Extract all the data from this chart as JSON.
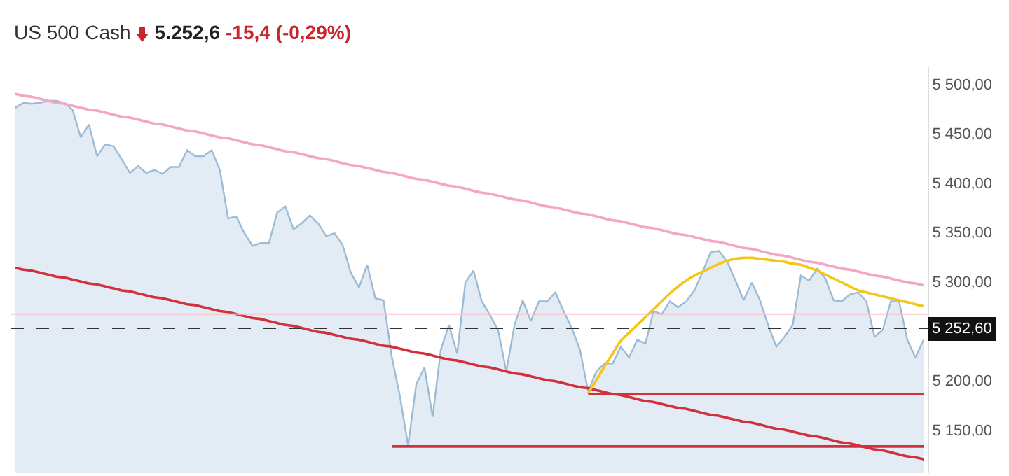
{
  "chart_data": {
    "type": "area",
    "title": "US 500 Cash",
    "annotations": [
      "5.252,6",
      "-15,4 (-0,29%)"
    ],
    "categories": [
      null,
      null,
      null,
      null,
      null,
      null,
      null,
      null,
      null,
      null,
      null,
      null,
      null,
      null,
      null,
      null,
      null,
      null,
      null,
      null,
      null,
      null,
      null,
      null,
      null,
      null,
      null,
      null,
      null,
      null,
      null,
      null,
      null,
      null,
      null,
      null,
      null,
      null,
      null,
      null,
      null,
      null,
      null,
      null,
      null,
      null,
      null,
      null,
      null,
      null,
      null,
      null,
      null,
      null,
      null,
      null,
      null,
      null,
      null,
      null,
      null,
      null,
      null,
      null,
      null,
      null,
      null,
      null,
      null,
      null,
      null,
      null,
      null,
      null,
      null,
      null,
      null,
      null,
      null,
      null,
      null,
      null,
      null,
      null,
      null,
      null,
      null,
      null,
      null,
      null,
      null,
      null,
      null,
      null,
      null,
      null,
      null,
      null,
      null,
      null,
      null,
      null,
      null,
      null,
      null,
      null,
      null,
      null,
      null,
      null,
      null,
      null
    ],
    "series": [
      {
        "color": "#9bbbd6",
        "values": [
          5476,
          5481,
          5480,
          5481,
          5483,
          5483,
          5481,
          5474,
          5446,
          5459,
          5427,
          5439,
          5437,
          5424,
          5410,
          5417,
          5410,
          5413,
          5409,
          5416,
          5416,
          5433,
          5427,
          5427,
          5433,
          5413,
          5364,
          5366,
          5349,
          5336,
          5339,
          5339,
          5370,
          5376,
          5353,
          5359,
          5367,
          5359,
          5346,
          5349,
          5337,
          5309,
          5294,
          5317,
          5283,
          5281,
          5224,
          5184,
          5134,
          5196,
          5213,
          5163,
          5231,
          5256,
          5227,
          5299,
          5311,
          5280,
          5266,
          5251,
          5209,
          5256,
          5281,
          5260,
          5280,
          5280,
          5289,
          5270,
          5253,
          5231,
          5189,
          5209,
          5217,
          5217,
          5234,
          5223,
          5241,
          5237,
          5270,
          5267,
          5280,
          5274,
          5280,
          5291,
          5310,
          5330,
          5331,
          5320,
          5301,
          5281,
          5299,
          5281,
          5256,
          5234,
          5244,
          5256,
          5306,
          5301,
          5313,
          5303,
          5281,
          5280,
          5287,
          5289,
          5280,
          5244,
          5251,
          5280,
          5280,
          5241,
          5223,
          5241
        ]
      },
      {
        "type": "line",
        "color": "#f4a6c4",
        "values": [
          5490,
          5488,
          5487,
          5485,
          5483,
          5481,
          5480,
          5478,
          5476,
          5474,
          5473,
          5471,
          5469,
          5467,
          5466,
          5464,
          5462,
          5460,
          5459,
          5457,
          5455,
          5453,
          5452,
          5450,
          5448,
          5446,
          5445,
          5443,
          5441,
          5439,
          5438,
          5436,
          5434,
          5432,
          5431,
          5429,
          5427,
          5425,
          5424,
          5422,
          5420,
          5418,
          5417,
          5415,
          5413,
          5411,
          5410,
          5408,
          5406,
          5404,
          5403,
          5401,
          5399,
          5397,
          5396,
          5394,
          5392,
          5390,
          5389,
          5387,
          5385,
          5383,
          5382,
          5380,
          5378,
          5376,
          5375,
          5373,
          5371,
          5369,
          5368,
          5366,
          5364,
          5362,
          5361,
          5359,
          5357,
          5355,
          5354,
          5352,
          5350,
          5348,
          5347,
          5345,
          5343,
          5341,
          5340,
          5338,
          5336,
          5334,
          5333,
          5331,
          5329,
          5327,
          5326,
          5324,
          5322,
          5320,
          5319,
          5317,
          5315,
          5313,
          5312,
          5310,
          5308,
          5306,
          5305,
          5303,
          5301,
          5299,
          5298,
          5296
        ]
      },
      {
        "type": "line",
        "color": "#d0313d",
        "values": [
          5314,
          5312,
          5311,
          5309,
          5307,
          5305,
          5304,
          5302,
          5300,
          5298,
          5297,
          5295,
          5293,
          5291,
          5290,
          5288,
          5286,
          5284,
          5283,
          5281,
          5279,
          5277,
          5276,
          5274,
          5272,
          5270,
          5269,
          5267,
          5265,
          5263,
          5262,
          5260,
          5258,
          5256,
          5255,
          5253,
          5251,
          5249,
          5248,
          5246,
          5244,
          5242,
          5241,
          5239,
          5237,
          5235,
          5234,
          5232,
          5230,
          5228,
          5227,
          5225,
          5223,
          5221,
          5220,
          5218,
          5216,
          5214,
          5213,
          5211,
          5209,
          5207,
          5206,
          5204,
          5202,
          5200,
          5199,
          5197,
          5195,
          5193,
          5192,
          5190,
          5188,
          5186,
          5185,
          5183,
          5181,
          5179,
          5178,
          5176,
          5174,
          5172,
          5171,
          5169,
          5167,
          5165,
          5164,
          5162,
          5160,
          5158,
          5157,
          5155,
          5153,
          5151,
          5150,
          5148,
          5146,
          5144,
          5143,
          5141,
          5139,
          5137,
          5136,
          5134,
          5132,
          5130,
          5129,
          5127,
          5125,
          5123,
          5122,
          5120
        ]
      },
      {
        "type": "line",
        "color": "#f5c518",
        "values": [
          null,
          null,
          null,
          null,
          null,
          null,
          null,
          null,
          null,
          null,
          null,
          null,
          null,
          null,
          null,
          null,
          null,
          null,
          null,
          null,
          null,
          null,
          null,
          null,
          null,
          null,
          null,
          null,
          null,
          null,
          null,
          null,
          null,
          null,
          null,
          null,
          null,
          null,
          null,
          null,
          null,
          null,
          null,
          null,
          null,
          null,
          null,
          null,
          null,
          null,
          null,
          null,
          null,
          null,
          null,
          null,
          null,
          null,
          null,
          null,
          null,
          null,
          null,
          null,
          null,
          null,
          null,
          null,
          null,
          null,
          5187,
          5200,
          5214,
          5227,
          5240,
          5248,
          5256,
          5264,
          5272,
          5280,
          5288,
          5295,
          5301,
          5306,
          5310,
          5314,
          5318,
          5321,
          5323,
          5324,
          5324,
          5323,
          5322,
          5321,
          5320,
          5318,
          5317,
          5314,
          5311,
          5307,
          5303,
          5299,
          5295,
          5291,
          5289,
          5287,
          5285,
          5283,
          5281,
          5279,
          5277,
          5275
        ]
      },
      {
        "type": "line",
        "color": "#d0313d",
        "values": [
          null,
          null,
          null,
          null,
          null,
          null,
          null,
          null,
          null,
          null,
          null,
          null,
          null,
          null,
          null,
          null,
          null,
          null,
          null,
          null,
          null,
          null,
          null,
          null,
          null,
          null,
          null,
          null,
          null,
          null,
          null,
          null,
          null,
          null,
          null,
          null,
          null,
          null,
          null,
          null,
          null,
          null,
          null,
          null,
          null,
          null,
          null,
          null,
          null,
          null,
          null,
          null,
          null,
          null,
          null,
          null,
          null,
          null,
          null,
          null,
          null,
          null,
          null,
          null,
          null,
          null,
          null,
          null,
          null,
          null,
          5186,
          5186,
          5186,
          5186,
          5186,
          5186,
          5186,
          5186,
          5186,
          5186,
          5186,
          5186,
          5186,
          5186,
          5186,
          5186,
          5186,
          5186,
          5186,
          5186,
          5186,
          5186,
          5186,
          5186,
          5186,
          5186,
          5186,
          5186,
          5186,
          5186,
          5186,
          5186,
          5186,
          5186,
          5186,
          5186,
          5186,
          5186,
          5186,
          5186,
          5186,
          5186
        ]
      },
      {
        "type": "line",
        "color": "#d0313d",
        "values": [
          null,
          null,
          null,
          null,
          null,
          null,
          null,
          null,
          null,
          null,
          null,
          null,
          null,
          null,
          null,
          null,
          null,
          null,
          null,
          null,
          null,
          null,
          null,
          null,
          null,
          null,
          null,
          null,
          null,
          null,
          null,
          null,
          null,
          null,
          null,
          null,
          null,
          null,
          null,
          null,
          null,
          null,
          null,
          null,
          null,
          null,
          5133,
          5133,
          5133,
          5133,
          5133,
          5133,
          5133,
          5133,
          5133,
          5133,
          5133,
          5133,
          5133,
          5133,
          5133,
          5133,
          5133,
          5133,
          5133,
          5133,
          5133,
          5133,
          5133,
          5133,
          5133,
          5133,
          5133,
          5133,
          5133,
          5133,
          5133,
          5133,
          5133,
          5133,
          5133,
          5133,
          5133,
          5133,
          5133,
          5133,
          5133,
          5133,
          5133,
          5133,
          5133,
          5133,
          5133,
          5133,
          5133,
          5133,
          5133,
          5133,
          5133,
          5133,
          5133,
          5133,
          5133,
          5133,
          5133,
          5133,
          5133,
          5133,
          5133,
          5133,
          5133,
          5133
        ]
      }
    ],
    "ylim": [
      5106,
      5517
    ],
    "yticks": [
      {
        "value": 5150,
        "label": "5 150,00"
      },
      {
        "value": 5200,
        "label": "5 200,00"
      },
      {
        "value": 5300,
        "label": "5 300,00"
      },
      {
        "value": 5350,
        "label": "5 350,00"
      },
      {
        "value": 5400,
        "label": "5 400,00"
      },
      {
        "value": 5450,
        "label": "5 450,00"
      },
      {
        "value": 5500,
        "label": "5 500,00"
      }
    ],
    "ref_lines": [
      {
        "axis": "y",
        "value": 5267,
        "color": "#f6c5cc",
        "line_style": "solid"
      },
      {
        "axis": "y",
        "value": 5252.6,
        "label": "5 252,60",
        "color": "#333333",
        "line_style": "dashed"
      }
    ],
    "tick_labels": "y"
  }
}
